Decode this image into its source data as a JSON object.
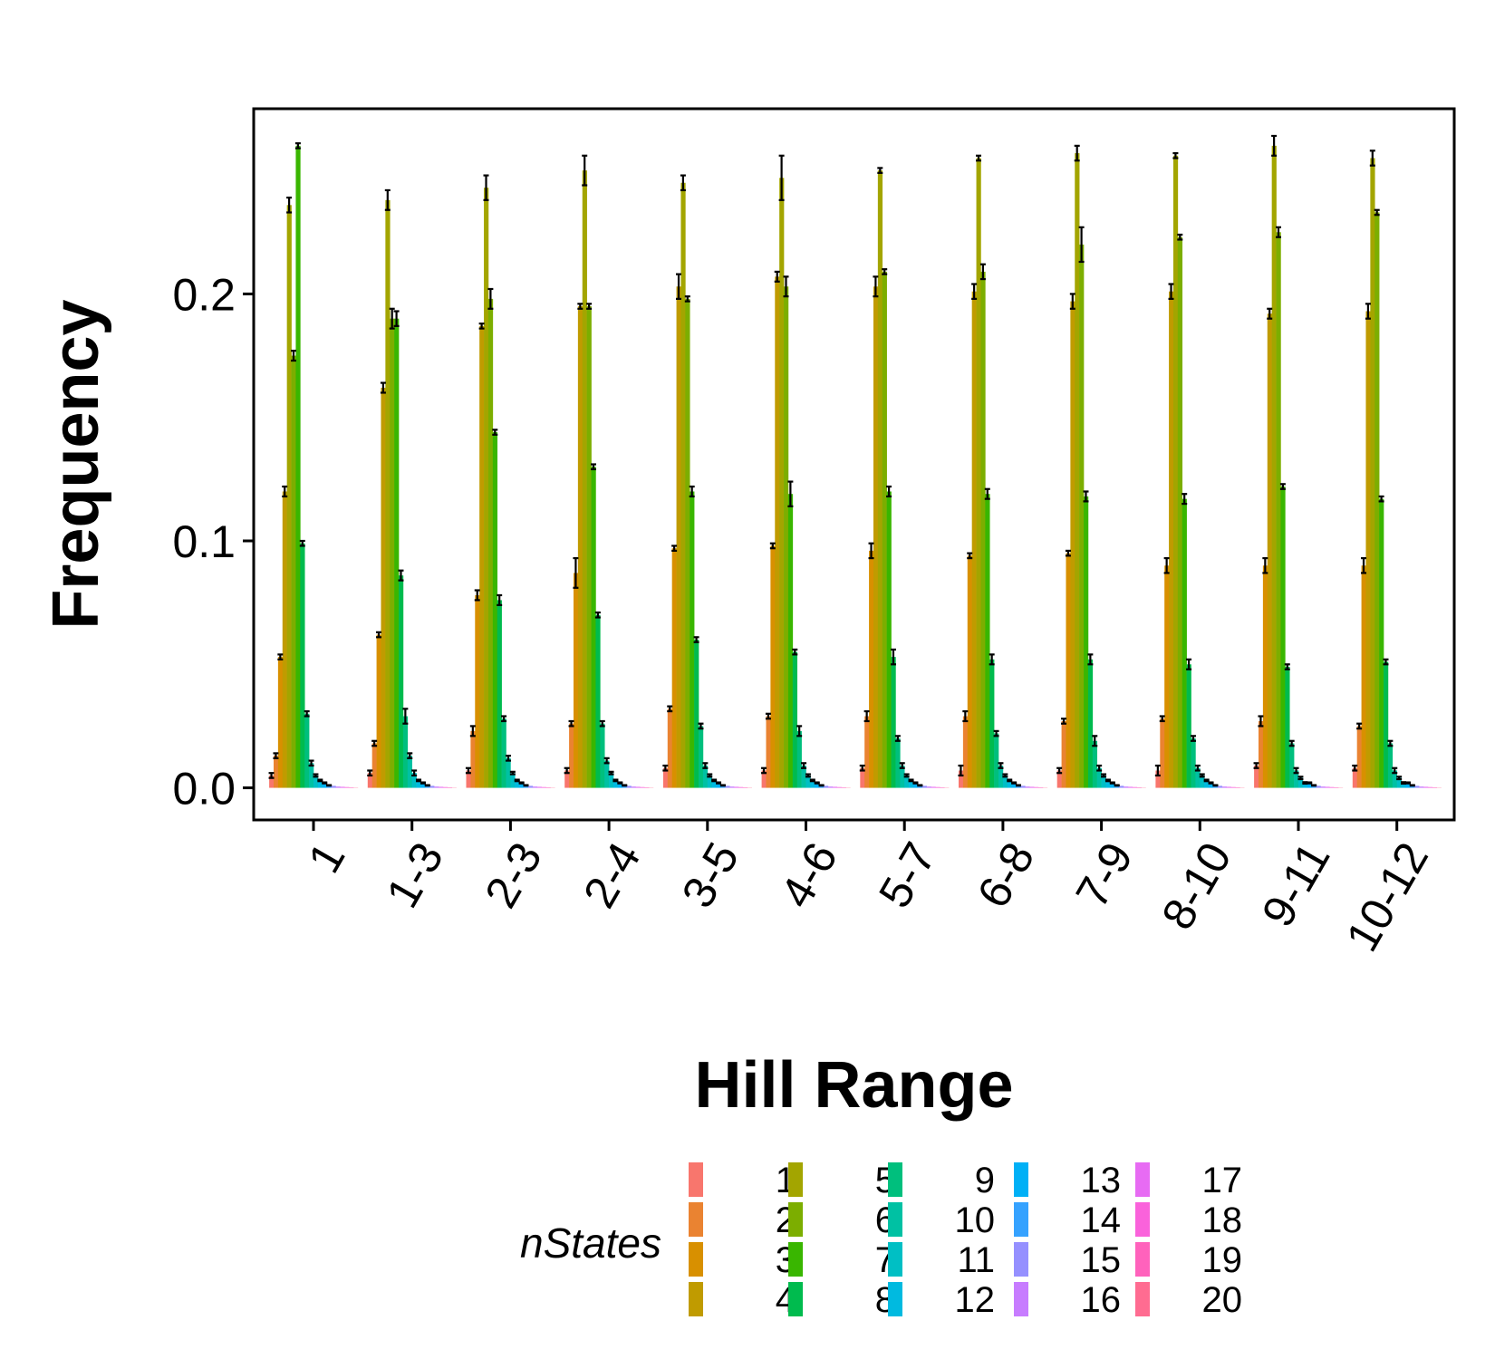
{
  "chart_data": {
    "type": "bar",
    "xlabel": "Hill Range",
    "ylabel": "Frequency",
    "ylim": [
      -0.013,
      0.275
    ],
    "yticks": [
      "0.0",
      "0.1",
      "0.2"
    ],
    "ytick_values": [
      0.0,
      0.1,
      0.2
    ],
    "grid": false,
    "legend_title": "nStates",
    "legend_placement": "bottom",
    "categories": [
      "1",
      "1-3",
      "2-3",
      "2-4",
      "3-5",
      "4-6",
      "5-7",
      "6-8",
      "7-9",
      "8-10",
      "9-11",
      "10-12"
    ],
    "series": [
      {
        "name": "1",
        "color": "#F8766D",
        "values": [
          0.005,
          0.006,
          0.007,
          0.007,
          0.008,
          0.007,
          0.008,
          0.007,
          0.007,
          0.007,
          0.009,
          0.008
        ],
        "errors": [
          0.001,
          0.001,
          0.001,
          0.001,
          0.001,
          0.001,
          0.001,
          0.002,
          0.001,
          0.002,
          0.001,
          0.001
        ]
      },
      {
        "name": "2",
        "color": "#EA8331",
        "values": [
          0.013,
          0.018,
          0.023,
          0.026,
          0.032,
          0.029,
          0.029,
          0.029,
          0.027,
          0.028,
          0.027,
          0.025
        ],
        "errors": [
          0.001,
          0.001,
          0.002,
          0.001,
          0.001,
          0.001,
          0.002,
          0.002,
          0.001,
          0.001,
          0.002,
          0.001
        ]
      },
      {
        "name": "3",
        "color": "#D89000",
        "values": [
          0.053,
          0.062,
          0.078,
          0.087,
          0.097,
          0.098,
          0.096,
          0.094,
          0.095,
          0.09,
          0.09,
          0.09
        ],
        "errors": [
          0.001,
          0.001,
          0.002,
          0.006,
          0.001,
          0.001,
          0.003,
          0.001,
          0.001,
          0.003,
          0.003,
          0.003
        ]
      },
      {
        "name": "4",
        "color": "#C09B00",
        "values": [
          0.12,
          0.162,
          0.187,
          0.195,
          0.203,
          0.207,
          0.203,
          0.201,
          0.197,
          0.201,
          0.192,
          0.193
        ],
        "errors": [
          0.002,
          0.002,
          0.001,
          0.001,
          0.005,
          0.002,
          0.004,
          0.003,
          0.003,
          0.003,
          0.002,
          0.003
        ]
      },
      {
        "name": "5",
        "color": "#A3A500",
        "values": [
          0.236,
          0.238,
          0.243,
          0.25,
          0.245,
          0.247,
          0.25,
          0.255,
          0.257,
          0.256,
          0.26,
          0.255
        ],
        "errors": [
          0.003,
          0.004,
          0.005,
          0.006,
          0.003,
          0.009,
          0.001,
          0.001,
          0.003,
          0.001,
          0.004,
          0.003
        ]
      },
      {
        "name": "6",
        "color": "#7CAE00",
        "values": [
          0.175,
          0.19,
          0.198,
          0.195,
          0.198,
          0.203,
          0.209,
          0.209,
          0.22,
          0.223,
          0.225,
          0.233
        ],
        "errors": [
          0.002,
          0.004,
          0.004,
          0.001,
          0.001,
          0.004,
          0.001,
          0.003,
          0.007,
          0.001,
          0.002,
          0.001
        ]
      },
      {
        "name": "7",
        "color": "#39B600",
        "values": [
          0.26,
          0.19,
          0.144,
          0.13,
          0.12,
          0.119,
          0.12,
          0.119,
          0.118,
          0.117,
          0.122,
          0.117
        ],
        "errors": [
          0.001,
          0.003,
          0.001,
          0.001,
          0.002,
          0.005,
          0.002,
          0.002,
          0.002,
          0.002,
          0.001,
          0.001
        ]
      },
      {
        "name": "8",
        "color": "#00BB4E",
        "values": [
          0.099,
          0.086,
          0.076,
          0.07,
          0.06,
          0.055,
          0.053,
          0.052,
          0.052,
          0.05,
          0.049,
          0.051
        ],
        "errors": [
          0.001,
          0.002,
          0.002,
          0.001,
          0.001,
          0.001,
          0.003,
          0.002,
          0.002,
          0.002,
          0.001,
          0.001
        ]
      },
      {
        "name": "9",
        "color": "#00BF7D",
        "values": [
          0.03,
          0.029,
          0.028,
          0.026,
          0.025,
          0.023,
          0.02,
          0.022,
          0.019,
          0.02,
          0.018,
          0.018
        ],
        "errors": [
          0.001,
          0.003,
          0.001,
          0.001,
          0.001,
          0.002,
          0.001,
          0.001,
          0.002,
          0.001,
          0.001,
          0.001
        ]
      },
      {
        "name": "10",
        "color": "#00C1A3",
        "values": [
          0.01,
          0.013,
          0.012,
          0.011,
          0.009,
          0.009,
          0.009,
          0.009,
          0.008,
          0.008,
          0.007,
          0.007
        ],
        "errors": [
          0.001,
          0.001,
          0.001,
          0.001,
          0.001,
          0.001,
          0.001,
          0.001,
          0.001,
          0.001,
          0.001,
          0.001
        ]
      },
      {
        "name": "11",
        "color": "#00BFC4",
        "values": [
          0.005,
          0.006,
          0.006,
          0.006,
          0.005,
          0.005,
          0.005,
          0.005,
          0.005,
          0.005,
          0.004,
          0.004
        ],
        "errors": [
          0.0005,
          0.001,
          0.0005,
          0.0005,
          0.0005,
          0.0005,
          0.0005,
          0.0005,
          0.0005,
          0.0005,
          0.0005,
          0.0005
        ]
      },
      {
        "name": "12",
        "color": "#00BAE0",
        "values": [
          0.003,
          0.003,
          0.003,
          0.003,
          0.003,
          0.003,
          0.003,
          0.003,
          0.003,
          0.003,
          0.002,
          0.002
        ],
        "errors": [
          0.0003,
          0.0003,
          0.0003,
          0.0003,
          0.0003,
          0.0003,
          0.0003,
          0.0003,
          0.0003,
          0.0003,
          0.0003,
          0.0003
        ]
      },
      {
        "name": "13",
        "color": "#00B0F6",
        "values": [
          0.002,
          0.002,
          0.002,
          0.002,
          0.002,
          0.002,
          0.002,
          0.002,
          0.002,
          0.002,
          0.002,
          0.002
        ],
        "errors": [
          0.0002,
          0.0002,
          0.0002,
          0.0002,
          0.0002,
          0.0002,
          0.0002,
          0.0002,
          0.0002,
          0.0002,
          0.0002,
          0.0002
        ]
      },
      {
        "name": "14",
        "color": "#35A2FF",
        "values": [
          0.001,
          0.001,
          0.001,
          0.001,
          0.001,
          0.001,
          0.001,
          0.001,
          0.001,
          0.001,
          0.001,
          0.001
        ],
        "errors": [
          0.0001,
          0.0001,
          0.0001,
          0.0001,
          0.0001,
          0.0001,
          0.0001,
          0.0001,
          0.0001,
          0.0001,
          0.0001,
          0.0001
        ]
      },
      {
        "name": "15",
        "color": "#9590FF",
        "values": [
          0.0008,
          0.0008,
          0.0008,
          0.0008,
          0.0008,
          0.0008,
          0.0008,
          0.0008,
          0.0008,
          0.0008,
          0.0008,
          0.0008
        ],
        "errors": [
          0,
          0,
          0,
          0,
          0,
          0,
          0,
          0,
          0,
          0,
          0,
          0
        ]
      },
      {
        "name": "16",
        "color": "#C77CFF",
        "values": [
          0.0005,
          0.0005,
          0.0005,
          0.0005,
          0.0005,
          0.0005,
          0.0005,
          0.0005,
          0.0005,
          0.0005,
          0.0005,
          0.0005
        ],
        "errors": [
          0,
          0,
          0,
          0,
          0,
          0,
          0,
          0,
          0,
          0,
          0,
          0
        ]
      },
      {
        "name": "17",
        "color": "#E76BF3",
        "values": [
          0.0004,
          0.0004,
          0.0004,
          0.0004,
          0.0004,
          0.0004,
          0.0004,
          0.0004,
          0.0004,
          0.0004,
          0.0004,
          0.0004
        ],
        "errors": [
          0,
          0,
          0,
          0,
          0,
          0,
          0,
          0,
          0,
          0,
          0,
          0
        ]
      },
      {
        "name": "18",
        "color": "#FA62DB",
        "values": [
          0.0003,
          0.0003,
          0.0003,
          0.0003,
          0.0003,
          0.0003,
          0.0003,
          0.0003,
          0.0003,
          0.0003,
          0.0003,
          0.0003
        ],
        "errors": [
          0,
          0,
          0,
          0,
          0,
          0,
          0,
          0,
          0,
          0,
          0,
          0
        ]
      },
      {
        "name": "19",
        "color": "#FF62BC",
        "values": [
          0.0002,
          0.0002,
          0.0002,
          0.0002,
          0.0002,
          0.0002,
          0.0002,
          0.0002,
          0.0002,
          0.0002,
          0.0002,
          0.0002
        ],
        "errors": [
          0,
          0,
          0,
          0,
          0,
          0,
          0,
          0,
          0,
          0,
          0,
          0
        ]
      },
      {
        "name": "20",
        "color": "#FF6C91",
        "values": [
          0.0001,
          0.0001,
          0.0001,
          0.0001,
          0.0001,
          0.0001,
          0.0001,
          0.0001,
          0.0001,
          0.0001,
          0.0001,
          0.0001
        ],
        "errors": [
          0,
          0,
          0,
          0,
          0,
          0,
          0,
          0,
          0,
          0,
          0,
          0
        ]
      }
    ]
  }
}
